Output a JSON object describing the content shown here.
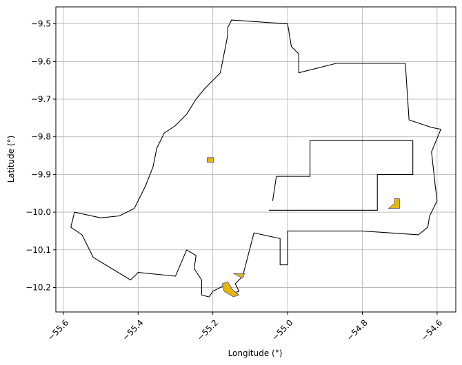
{
  "chart_data": {
    "type": "map",
    "title": "",
    "xlabel": "Longitude (°)",
    "ylabel": "Latitude (°)",
    "xlim": [
      -55.62,
      -54.55
    ],
    "ylim": [
      -10.265,
      -9.455
    ],
    "x_ticks": [
      -55.6,
      -55.4,
      -55.2,
      -55.0,
      -54.8,
      -54.6
    ],
    "x_tick_labels": [
      "−55.6",
      "−55.4",
      "−55.2",
      "−55.0",
      "−54.8",
      "−54.6"
    ],
    "y_ticks": [
      -9.5,
      -9.6,
      -9.7,
      -9.8,
      -9.9,
      -10.0,
      -10.1,
      -10.2
    ],
    "y_tick_labels": [
      "−9.5",
      "−9.6",
      "−9.7",
      "−9.8",
      "−9.9",
      "−10.0",
      "−10.1",
      "−10.2"
    ],
    "grid": true,
    "colors": {
      "boundary": "#000000",
      "patch_fill": "#e6b800",
      "patch_edge": "#4a4aa8",
      "grid": "#b0b0b0"
    },
    "boundary": [
      [
        -55.15,
        -9.49
      ],
      [
        -55.0,
        -9.5
      ],
      [
        -54.99,
        -9.56
      ],
      [
        -54.97,
        -9.58
      ],
      [
        -54.97,
        -9.63
      ],
      [
        -54.87,
        -9.605
      ],
      [
        -54.685,
        -9.605
      ],
      [
        -54.675,
        -9.755
      ],
      [
        -54.615,
        -9.775
      ],
      [
        -54.59,
        -9.78
      ],
      [
        -54.615,
        -9.84
      ],
      [
        -54.605,
        -9.93
      ],
      [
        -54.6,
        -9.97
      ],
      [
        -54.62,
        -10.01
      ],
      [
        -54.625,
        -10.04
      ],
      [
        -54.65,
        -10.06
      ],
      [
        -54.8,
        -10.05
      ],
      [
        -55.0,
        -10.05
      ],
      [
        -55.0,
        -10.14
      ],
      [
        -55.02,
        -10.14
      ],
      [
        -55.02,
        -10.07
      ],
      [
        -55.09,
        -10.055
      ],
      [
        -55.12,
        -10.17
      ],
      [
        -55.14,
        -10.19
      ],
      [
        -55.13,
        -10.21
      ],
      [
        -55.145,
        -10.215
      ],
      [
        -55.17,
        -10.195
      ],
      [
        -55.2,
        -10.21
      ],
      [
        -55.21,
        -10.225
      ],
      [
        -55.23,
        -10.22
      ],
      [
        -55.23,
        -10.18
      ],
      [
        -55.25,
        -10.15
      ],
      [
        -55.245,
        -10.115
      ],
      [
        -55.27,
        -10.1
      ],
      [
        -55.3,
        -10.17
      ],
      [
        -55.4,
        -10.16
      ],
      [
        -55.42,
        -10.18
      ],
      [
        -55.47,
        -10.15
      ],
      [
        -55.52,
        -10.12
      ],
      [
        -55.55,
        -10.06
      ],
      [
        -55.58,
        -10.04
      ],
      [
        -55.57,
        -10.0
      ],
      [
        -55.5,
        -10.015
      ],
      [
        -55.45,
        -10.01
      ],
      [
        -55.41,
        -9.99
      ],
      [
        -55.38,
        -9.93
      ],
      [
        -55.36,
        -9.88
      ],
      [
        -55.35,
        -9.83
      ],
      [
        -55.33,
        -9.79
      ],
      [
        -55.3,
        -9.77
      ],
      [
        -55.27,
        -9.74
      ],
      [
        -55.245,
        -9.7
      ],
      [
        -55.22,
        -9.67
      ],
      [
        -55.18,
        -9.63
      ],
      [
        -55.17,
        -9.58
      ],
      [
        -55.16,
        -9.53
      ],
      [
        -55.16,
        -9.51
      ]
    ],
    "inner_boundary": [
      [
        -55.05,
        -9.995
      ],
      [
        -54.76,
        -9.995
      ],
      [
        -54.76,
        -9.9
      ],
      [
        -54.665,
        -9.9
      ],
      [
        -54.665,
        -9.81
      ],
      [
        -54.94,
        -9.81
      ],
      [
        -54.94,
        -9.905
      ],
      [
        -55.03,
        -9.905
      ],
      [
        -55.04,
        -9.97
      ]
    ],
    "patches": [
      [
        [
          -55.215,
          -9.855
        ],
        [
          -55.198,
          -9.855
        ],
        [
          -55.198,
          -9.868
        ],
        [
          -55.215,
          -9.868
        ]
      ],
      [
        [
          -54.713,
          -9.963
        ],
        [
          -54.7,
          -9.965
        ],
        [
          -54.7,
          -9.99
        ],
        [
          -54.73,
          -9.99
        ],
        [
          -54.715,
          -9.978
        ]
      ],
      [
        [
          -55.145,
          -10.163
        ],
        [
          -55.115,
          -10.163
        ],
        [
          -55.12,
          -10.175
        ]
      ],
      [
        [
          -55.175,
          -10.19
        ],
        [
          -55.16,
          -10.185
        ],
        [
          -55.148,
          -10.205
        ],
        [
          -55.13,
          -10.22
        ],
        [
          -55.145,
          -10.225
        ],
        [
          -55.17,
          -10.21
        ]
      ]
    ]
  }
}
